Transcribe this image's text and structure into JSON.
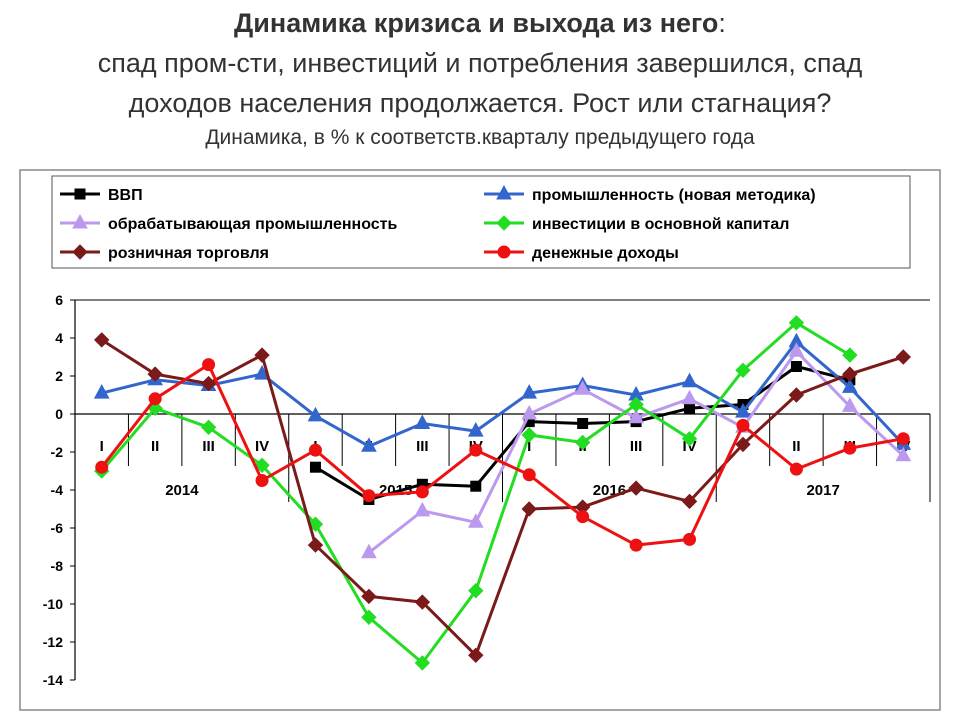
{
  "header": {
    "title_bold": "Динамика кризиса и выхода из него",
    "title_colon": ":",
    "line2": "спад пром-сти, инвестиций и потребления завершился, спад",
    "line3": "доходов населения продолжается. Рост или стагнация?",
    "subtitle": "Динамика, в % к соответств.кварталу предыдущего года"
  },
  "chart_data": {
    "type": "line",
    "x": [
      "I",
      "II",
      "III",
      "IV",
      "I",
      "II",
      "III",
      "IV",
      "I",
      "II",
      "III",
      "IV",
      "I",
      "II",
      "III",
      "IV"
    ],
    "year_labels": [
      {
        "label": "2014",
        "quarter_index": 1.5
      },
      {
        "label": "2015",
        "quarter_index": 5.5
      },
      {
        "label": "2016",
        "quarter_index": 9.5
      },
      {
        "label": "2017",
        "quarter_index": 13.5
      }
    ],
    "ylim": [
      -14,
      6
    ],
    "yticks": [
      6,
      4,
      2,
      0,
      -2,
      -4,
      -6,
      -8,
      -10,
      -12,
      -14
    ],
    "grid": false,
    "legend_position": "top",
    "series": [
      {
        "name": "ВВП",
        "color": "#000000",
        "marker": "square",
        "values": [
          null,
          null,
          null,
          null,
          -2.8,
          -4.5,
          -3.7,
          -3.8,
          -0.4,
          -0.5,
          -0.4,
          0.3,
          0.5,
          2.5,
          1.8,
          null
        ]
      },
      {
        "name": "промышленность (новая методика)",
        "color": "#3366cc",
        "marker": "triangle",
        "values": [
          1.1,
          1.8,
          1.5,
          2.1,
          -0.1,
          -1.7,
          -0.5,
          -0.9,
          1.1,
          1.5,
          1.0,
          1.7,
          0.1,
          3.8,
          1.4,
          -1.6
        ]
      },
      {
        "name": "обрабатывающая промышленность",
        "color": "#bb99ee",
        "marker": "triangle",
        "values": [
          null,
          null,
          null,
          null,
          null,
          -7.3,
          -5.1,
          -5.7,
          0.0,
          1.3,
          -0.2,
          0.8,
          -0.7,
          3.3,
          0.4,
          -2.2
        ]
      },
      {
        "name": "инвестиции в основной капитал",
        "color": "#22dd22",
        "marker": "diamond",
        "values": [
          -3.0,
          0.3,
          -0.7,
          -2.7,
          -5.8,
          -10.7,
          -13.1,
          -9.3,
          -1.1,
          -1.5,
          0.5,
          -1.3,
          2.3,
          4.8,
          3.1,
          null
        ]
      },
      {
        "name": "розничная торговля",
        "color": "#7a1a1a",
        "marker": "diamond",
        "values": [
          3.9,
          2.1,
          1.6,
          3.1,
          -6.9,
          -9.6,
          -9.9,
          -12.7,
          -5.0,
          -4.9,
          -3.9,
          -4.6,
          -1.6,
          1.0,
          2.1,
          3.0
        ]
      },
      {
        "name": "денежные доходы",
        "color": "#ee1111",
        "marker": "circle",
        "values": [
          -2.8,
          0.8,
          2.6,
          -3.5,
          -1.9,
          -4.3,
          -4.1,
          -1.9,
          -3.2,
          -5.4,
          -6.9,
          -6.6,
          -0.6,
          -2.9,
          -1.8,
          -1.3
        ]
      }
    ]
  }
}
